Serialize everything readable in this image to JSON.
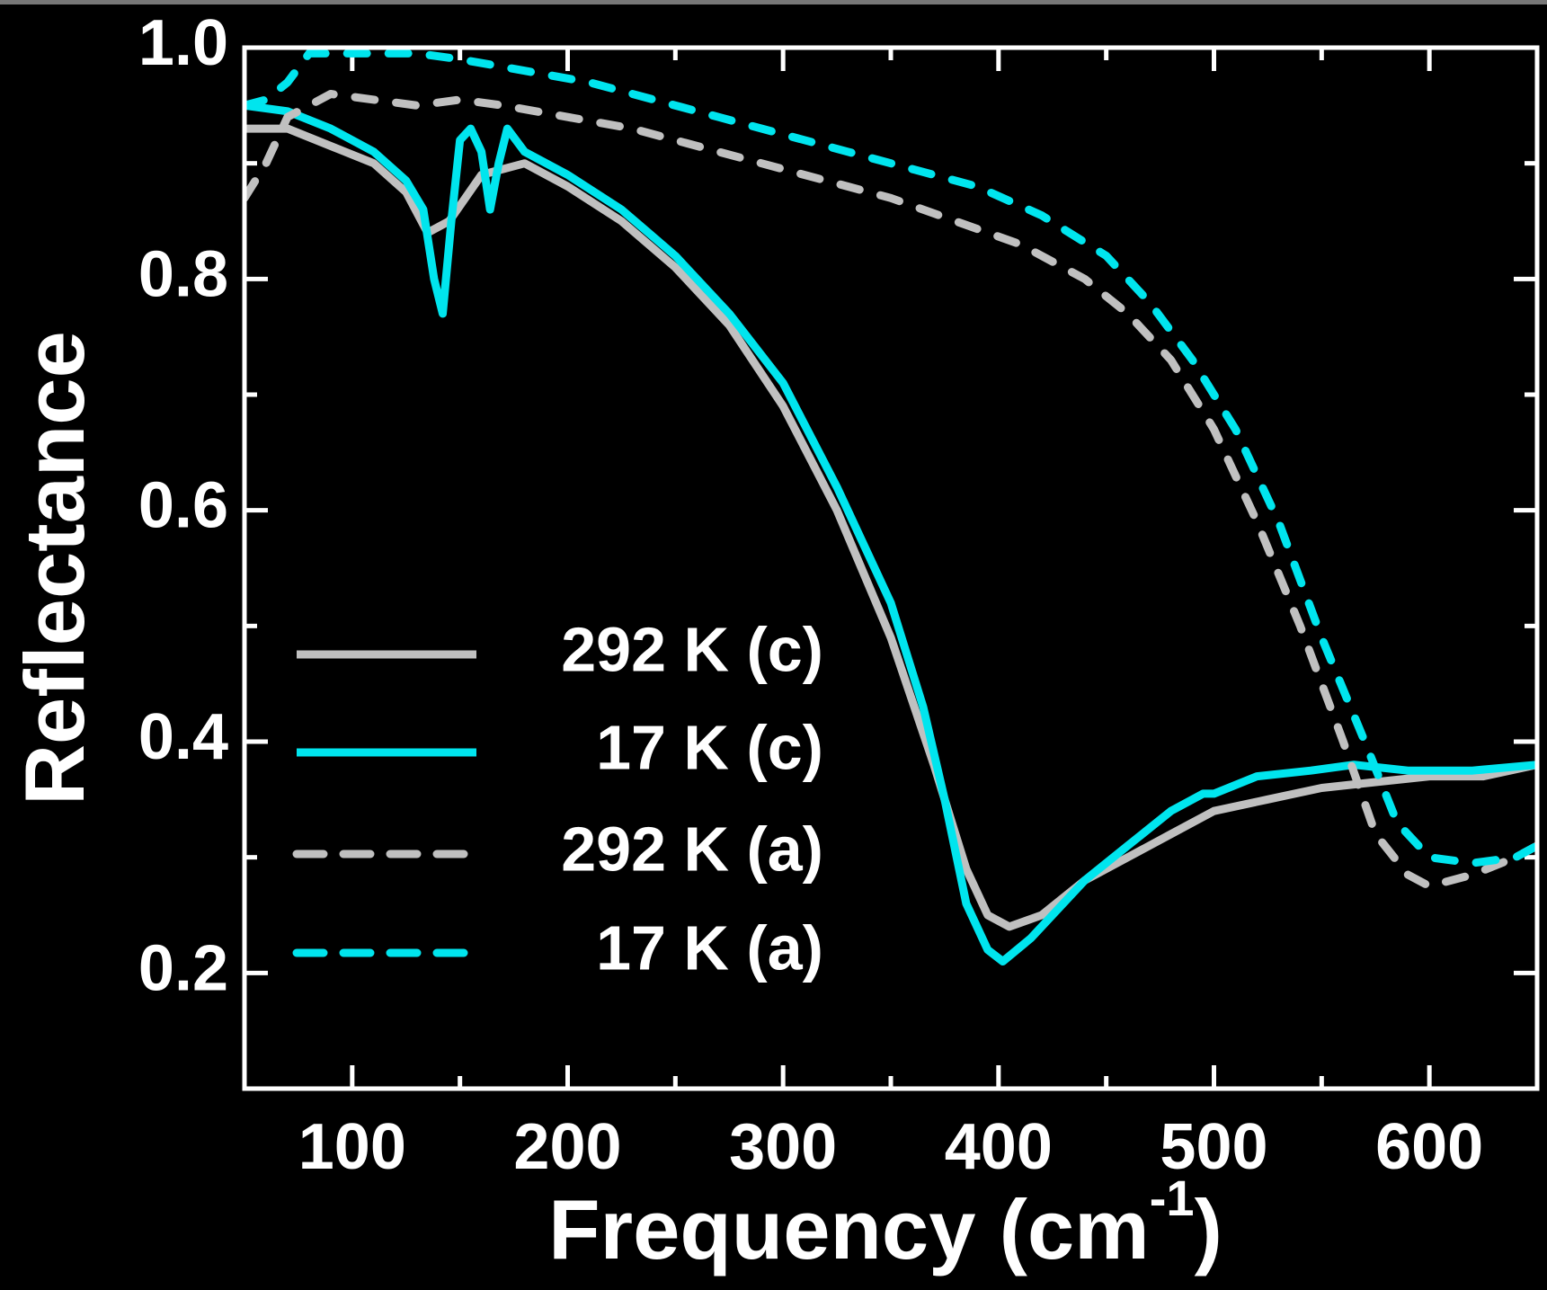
{
  "chart_data": {
    "type": "line",
    "ylabel": "Reflectance",
    "xlabel": {
      "text": "Frequency (cm",
      "sup": "-1",
      "tail": ")"
    },
    "xlim": [
      50,
      650
    ],
    "xticks": [
      100,
      200,
      300,
      400,
      500,
      600
    ],
    "ylim": [
      0.1,
      1.0
    ],
    "yticks": [
      0.2,
      0.4,
      0.6,
      0.8,
      1.0
    ],
    "legend": "left",
    "series": [
      {
        "name": "292 K (c)",
        "color": "#c0c0c0",
        "dash": false,
        "x": [
          50,
          70,
          90,
          110,
          125,
          135,
          145,
          160,
          180,
          200,
          225,
          250,
          275,
          300,
          325,
          350,
          370,
          385,
          395,
          405,
          420,
          440,
          460,
          480,
          500,
          525,
          550,
          575,
          600,
          625,
          650
        ],
        "values": [
          0.93,
          0.93,
          0.915,
          0.9,
          0.875,
          0.84,
          0.85,
          0.89,
          0.9,
          0.88,
          0.85,
          0.81,
          0.76,
          0.69,
          0.6,
          0.49,
          0.38,
          0.29,
          0.25,
          0.24,
          0.25,
          0.28,
          0.3,
          0.32,
          0.34,
          0.35,
          0.36,
          0.365,
          0.37,
          0.37,
          0.38
        ]
      },
      {
        "name": "17 K (c)",
        "color": "#00e5ee",
        "dash": false,
        "x": [
          50,
          70,
          90,
          110,
          125,
          133,
          138,
          142,
          146,
          150,
          155,
          160,
          164,
          168,
          172,
          180,
          200,
          225,
          250,
          275,
          300,
          325,
          350,
          365,
          375,
          385,
          395,
          402,
          415,
          440,
          460,
          480,
          495,
          500,
          520,
          545,
          565,
          590,
          620,
          650
        ],
        "values": [
          0.95,
          0.945,
          0.93,
          0.91,
          0.885,
          0.86,
          0.8,
          0.77,
          0.85,
          0.92,
          0.93,
          0.91,
          0.86,
          0.9,
          0.93,
          0.91,
          0.89,
          0.86,
          0.82,
          0.77,
          0.71,
          0.62,
          0.52,
          0.43,
          0.35,
          0.26,
          0.22,
          0.21,
          0.23,
          0.28,
          0.31,
          0.34,
          0.355,
          0.355,
          0.37,
          0.375,
          0.38,
          0.375,
          0.375,
          0.38
        ]
      },
      {
        "name": "292 K (a)",
        "color": "#c0c0c0",
        "dash": true,
        "x": [
          50,
          60,
          70,
          90,
          110,
          130,
          150,
          170,
          200,
          230,
          260,
          290,
          320,
          350,
          380,
          410,
          440,
          460,
          480,
          500,
          520,
          540,
          560,
          575,
          590,
          600,
          620,
          640,
          650
        ],
        "values": [
          0.87,
          0.9,
          0.94,
          0.96,
          0.955,
          0.95,
          0.955,
          0.95,
          0.94,
          0.93,
          0.915,
          0.9,
          0.885,
          0.87,
          0.85,
          0.83,
          0.8,
          0.77,
          0.73,
          0.67,
          0.59,
          0.5,
          0.4,
          0.32,
          0.285,
          0.275,
          0.285,
          0.3,
          0.31
        ]
      },
      {
        "name": "17 K (a)",
        "color": "#00e5ee",
        "dash": true,
        "x": [
          50,
          60,
          70,
          80,
          100,
          130,
          150,
          180,
          210,
          240,
          270,
          300,
          330,
          360,
          390,
          420,
          450,
          470,
          490,
          510,
          530,
          550,
          570,
          585,
          600,
          620,
          640,
          650
        ],
        "values": [
          0.95,
          0.955,
          0.97,
          0.995,
          0.995,
          0.995,
          0.99,
          0.98,
          0.97,
          0.955,
          0.94,
          0.925,
          0.91,
          0.895,
          0.88,
          0.855,
          0.82,
          0.78,
          0.73,
          0.67,
          0.59,
          0.49,
          0.4,
          0.33,
          0.3,
          0.295,
          0.3,
          0.31
        ]
      }
    ]
  }
}
